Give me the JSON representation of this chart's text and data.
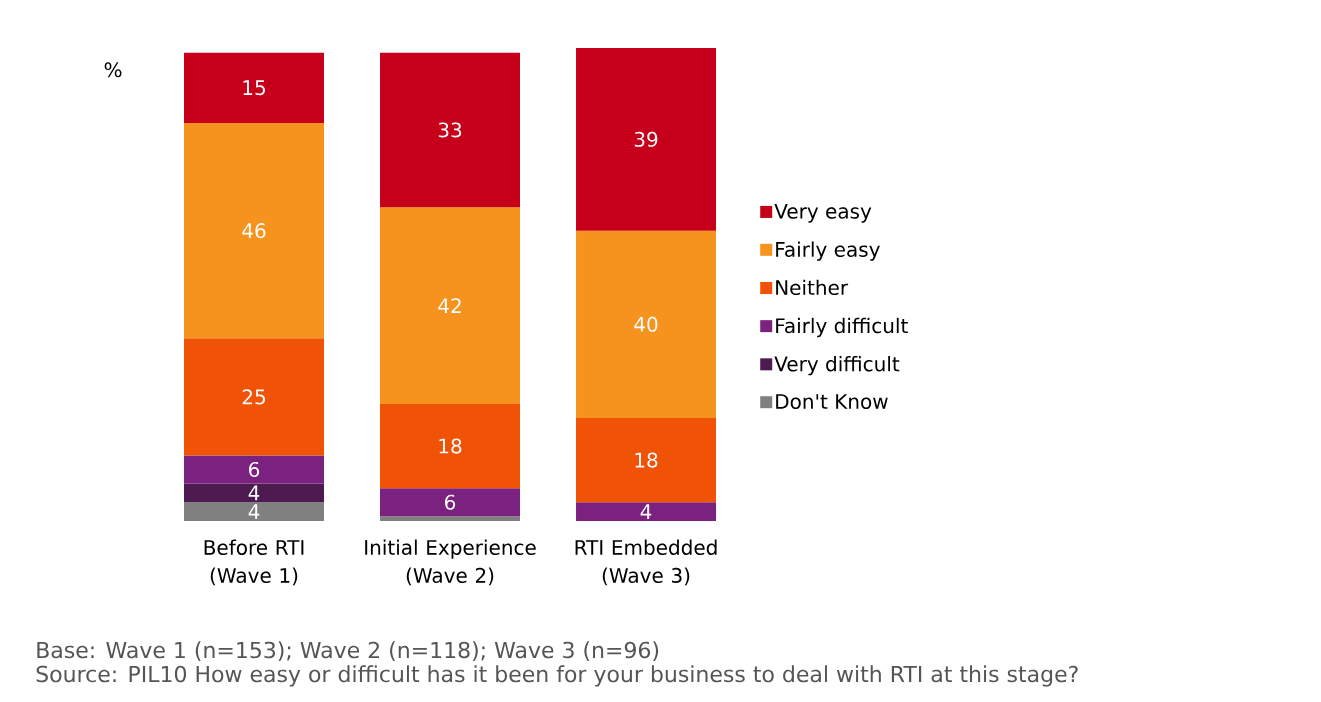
{
  "chart_data": {
    "type": "bar",
    "stacked": true,
    "ylabel": "%",
    "categories": [
      "Before RTI (Wave 1)",
      "Initial Experience (Wave 2)",
      "RTI Embedded (Wave 3)"
    ],
    "ylim": [
      0,
      101
    ],
    "series": [
      {
        "name": "Don't Know",
        "color": "#808080",
        "values": [
          4,
          1,
          null
        ],
        "value_labels": [
          "4",
          null,
          null
        ]
      },
      {
        "name": "Very difficult",
        "color": "#4d1b50",
        "values": [
          4,
          null,
          null
        ],
        "value_labels": [
          "4",
          null,
          null
        ]
      },
      {
        "name": "Fairly difficult",
        "color": "#7b2280",
        "values": [
          6,
          6,
          4
        ],
        "value_labels": [
          "6",
          "6",
          "4"
        ]
      },
      {
        "name": "Neither",
        "color": "#f05206",
        "values": [
          25,
          18,
          18
        ],
        "value_labels": [
          "25",
          "18",
          "18"
        ]
      },
      {
        "name": "Fairly easy",
        "color": "#f6921e",
        "values": [
          46,
          42,
          40
        ],
        "value_labels": [
          "46",
          "42",
          "40"
        ]
      },
      {
        "name": "Very easy",
        "color": "#c6001a",
        "values": [
          15,
          33,
          39
        ],
        "value_labels": [
          "15",
          "33",
          "39"
        ]
      }
    ],
    "legend": "right",
    "annotations": [
      "Base: Wave 1 (n=153); Wave 2 (n=118); Wave 3 (n=96)",
      "Source: PIL10 How easy or difficult has it been for your business to deal with RTI at this stage?"
    ]
  }
}
